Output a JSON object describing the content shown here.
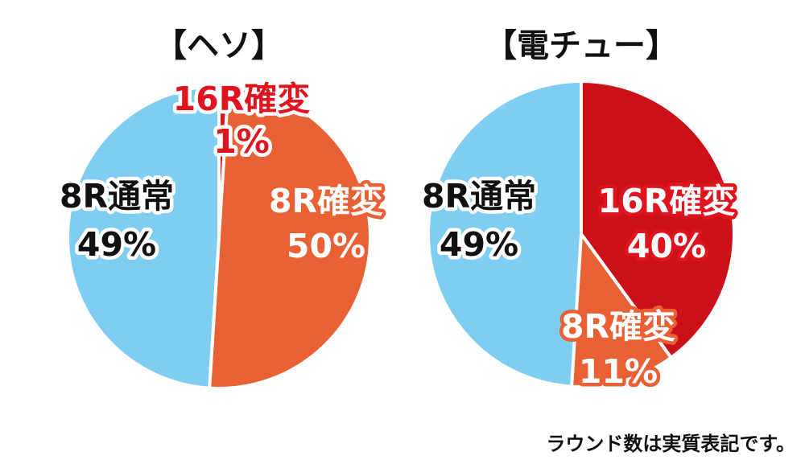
{
  "chart_data": [
    {
      "type": "pie",
      "title": "【ヘソ】",
      "slices": [
        {
          "name": "16R確変",
          "value": 1,
          "label": "1%",
          "color": "#e0141e"
        },
        {
          "name": "8R確変",
          "value": 50,
          "label": "50%",
          "color": "#ea6035"
        },
        {
          "name": "8R通常",
          "value": 49,
          "label": "49%",
          "color": "#7fcdf0"
        }
      ]
    },
    {
      "type": "pie",
      "title": "【電チュー】",
      "slices": [
        {
          "name": "16R確変",
          "value": 40,
          "label": "40%",
          "color": "#cc1018"
        },
        {
          "name": "8R確変",
          "value": 11,
          "label": "11%",
          "color": "#ea6035"
        },
        {
          "name": "8R通常",
          "value": 49,
          "label": "49%",
          "color": "#7fcdf0"
        }
      ]
    }
  ],
  "footnote": "ラウンド数は実質表記です。"
}
